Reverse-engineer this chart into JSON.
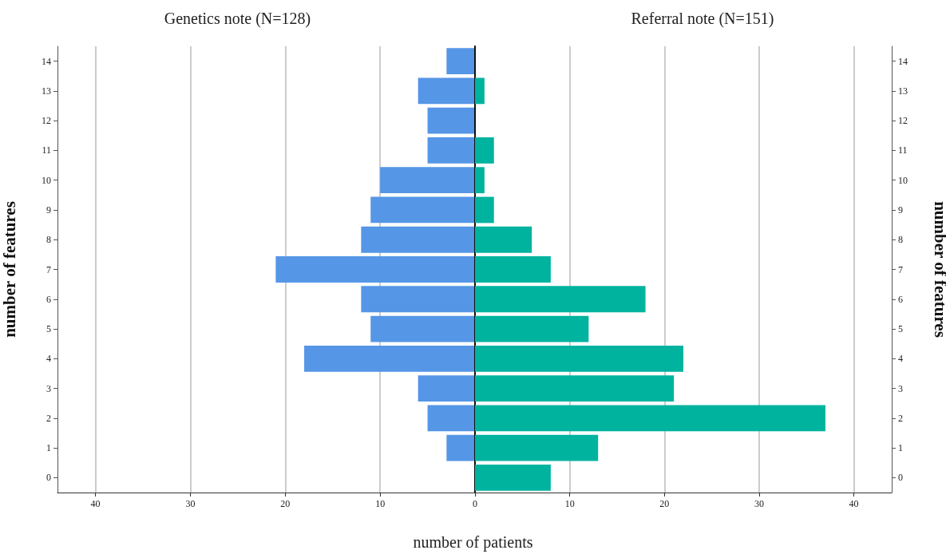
{
  "chart_data": [
    {
      "type": "bar",
      "orientation": "horizontal",
      "title": "Genetics note (N=128)",
      "xlabel": "number of patients",
      "ylabel": "number of features",
      "categories": [
        "14",
        "13",
        "12",
        "11",
        "10",
        "9",
        "8",
        "7",
        "6",
        "5",
        "4",
        "3",
        "2",
        "1",
        "0"
      ],
      "series": [
        {
          "color": "#5596e6",
          "values": [
            3,
            6,
            5,
            5,
            10,
            11,
            12,
            21,
            12,
            11,
            18,
            6,
            5,
            3,
            0
          ]
        }
      ],
      "xlim": [
        44,
        0
      ],
      "xticks": [
        40,
        30,
        20,
        10,
        {
          "value": 0,
          "label": null
        }
      ],
      "grid": "x"
    },
    {
      "type": "bar",
      "orientation": "horizontal",
      "title": "Referral note (N=151)",
      "ylabel": "number of features",
      "categories": [
        "14",
        "13",
        "12",
        "11",
        "10",
        "9",
        "8",
        "7",
        "6",
        "5",
        "4",
        "3",
        "2",
        "1",
        "0"
      ],
      "series": [
        {
          "color": "#00b39f",
          "values": [
            0,
            1,
            0,
            2,
            1,
            2,
            6,
            8,
            18,
            12,
            22,
            21,
            37,
            13,
            8
          ]
        }
      ],
      "xlim": [
        0,
        44
      ],
      "xticks": [
        0,
        10,
        20,
        30,
        40
      ],
      "grid": "x"
    }
  ]
}
